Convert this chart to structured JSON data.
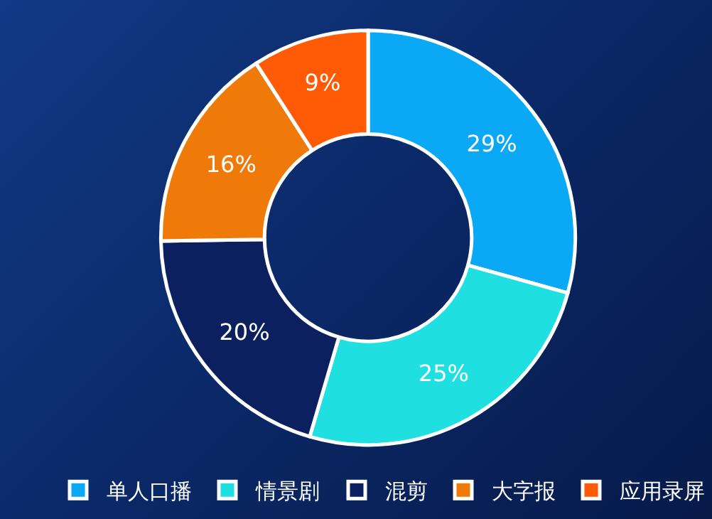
{
  "chart_data": {
    "type": "donut",
    "categories": [
      "单人口播",
      "情景剧",
      "混剪",
      "大字报",
      "应用录屏"
    ],
    "values": [
      29,
      25,
      20,
      16,
      9
    ],
    "colors": [
      "#0aa8f5",
      "#1fdfe0",
      "#0c1f5e",
      "#ef7a0a",
      "#ff5a05"
    ],
    "value_labels": [
      "29%",
      "25%",
      "20%",
      "16%",
      "9%"
    ],
    "legend": "bottom"
  }
}
